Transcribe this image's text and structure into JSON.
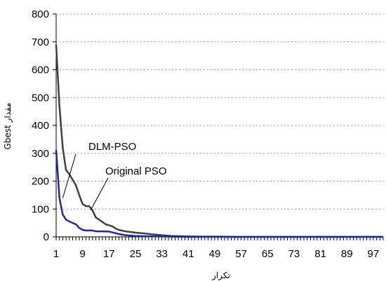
{
  "chart_data": {
    "type": "line",
    "xlabel": "تکرار",
    "ylabel": "Gbest مقدار",
    "ylim": [
      0,
      800
    ],
    "yticks": [
      0,
      100,
      200,
      300,
      400,
      500,
      600,
      700,
      800
    ],
    "xlim": [
      1,
      100
    ],
    "xticks": [
      1,
      9,
      17,
      25,
      33,
      41,
      49,
      57,
      65,
      73,
      81,
      89,
      97
    ],
    "grid": "horizontal dashed",
    "annotations": [
      {
        "text": "DLM-PSO",
        "series": "DLM-PSO"
      },
      {
        "text": "Original PSO",
        "series": "Original PSO"
      }
    ],
    "series": [
      {
        "name": "Original PSO",
        "color": "#404040",
        "x": [
          1,
          2,
          3,
          4,
          5,
          6,
          7,
          8,
          9,
          10,
          11,
          12,
          13,
          14,
          16,
          18,
          19,
          20,
          22,
          25,
          28,
          30,
          33,
          36,
          40,
          45,
          50,
          55,
          100
        ],
        "y": [
          690,
          470,
          320,
          240,
          225,
          205,
          185,
          150,
          118,
          110,
          110,
          95,
          70,
          62,
          45,
          38,
          30,
          25,
          20,
          15,
          12,
          9,
          6,
          3,
          2,
          1,
          1,
          0,
          0
        ]
      },
      {
        "name": "DLM-PSO",
        "color": "#1f2a9c",
        "x": [
          1,
          2,
          3,
          4,
          5,
          6,
          7,
          8,
          9,
          10,
          12,
          13,
          14,
          17,
          18,
          20,
          22,
          25,
          30,
          35,
          40,
          100
        ],
        "y": [
          312,
          140,
          80,
          62,
          55,
          50,
          45,
          32,
          25,
          23,
          23,
          20,
          20,
          19,
          16,
          10,
          6,
          3,
          2,
          1,
          0,
          0
        ]
      }
    ]
  }
}
